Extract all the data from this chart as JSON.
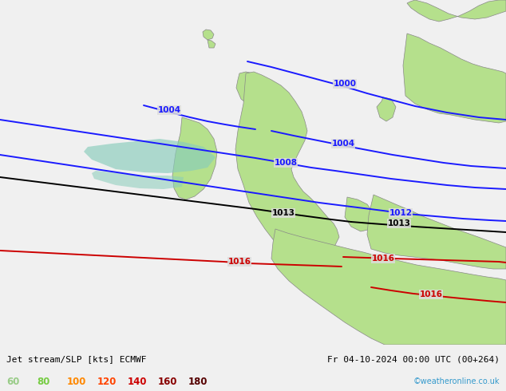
{
  "title_left": "Jet stream/SLP [kts] ECMWF",
  "title_right": "Fr 04-10-2024 00:00 UTC (00+264)",
  "credit": "©weatheronline.co.uk",
  "legend_values": [
    "60",
    "80",
    "100",
    "120",
    "140",
    "160",
    "180"
  ],
  "legend_colors": [
    "#99cc99",
    "#66cc66",
    "#ff6600",
    "#ff0000",
    "#cc0000",
    "#990000",
    "#660000"
  ],
  "bg_color": "#dcdcdc",
  "ocean_color": "#dcdcdc",
  "land_color": "#b5e08c",
  "border_color": "#888888",
  "figsize": [
    6.34,
    4.9
  ],
  "dpi": 100,
  "bottom_bar_color": "#f0f0f0",
  "blue_isobar_color": "#1a1aff",
  "black_isobar_color": "#000000",
  "red_isobar_color": "#cc0000",
  "jet_fill_color": "#88ccbb",
  "isobar_lw": 1.4,
  "label_fontsize": 7.5
}
